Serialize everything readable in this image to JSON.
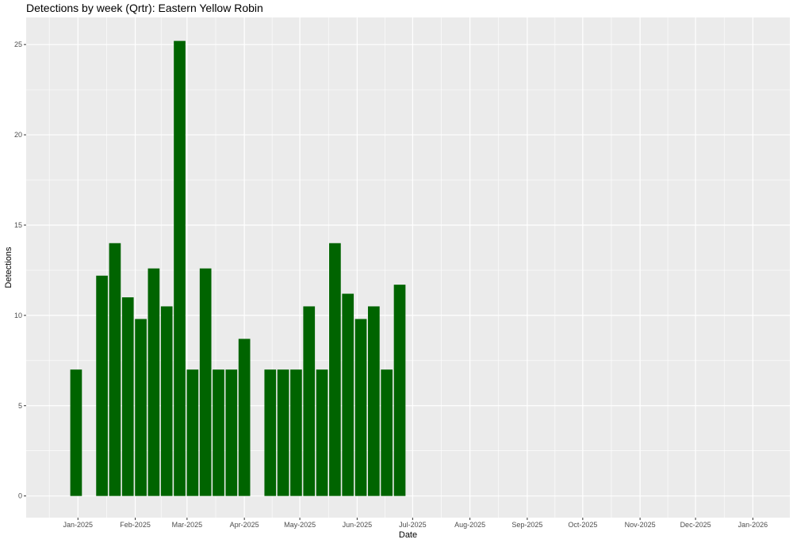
{
  "chart_data": {
    "type": "bar",
    "title": "Detections by week (Qrtr): Eastern Yellow Robin",
    "xlabel": "Date",
    "ylabel": "Detections",
    "x_type": "date",
    "xlim": [
      "2024-12-04",
      "2026-01-21"
    ],
    "ylim": [
      -1.2,
      26.5
    ],
    "y_ticks": [
      0,
      5,
      10,
      15,
      20,
      25
    ],
    "x_ticks": [
      {
        "date": "2025-01-01",
        "label": "Jan-2025"
      },
      {
        "date": "2025-02-01",
        "label": "Feb-2025"
      },
      {
        "date": "2025-03-01",
        "label": "Mar-2025"
      },
      {
        "date": "2025-04-01",
        "label": "Apr-2025"
      },
      {
        "date": "2025-05-01",
        "label": "May-2025"
      },
      {
        "date": "2025-06-01",
        "label": "Jun-2025"
      },
      {
        "date": "2025-07-01",
        "label": "Jul-2025"
      },
      {
        "date": "2025-08-01",
        "label": "Aug-2025"
      },
      {
        "date": "2025-09-01",
        "label": "Sep-2025"
      },
      {
        "date": "2025-10-01",
        "label": "Oct-2025"
      },
      {
        "date": "2025-11-01",
        "label": "Nov-2025"
      },
      {
        "date": "2025-12-01",
        "label": "Dec-2025"
      },
      {
        "date": "2026-01-01",
        "label": "Jan-2026"
      }
    ],
    "grid": true,
    "bar_color": "#006400",
    "panel_color": "#ebebeb",
    "x": [
      "2024-12-31",
      "2025-01-14",
      "2025-01-21",
      "2025-01-28",
      "2025-02-04",
      "2025-02-11",
      "2025-02-18",
      "2025-02-25",
      "2025-03-04",
      "2025-03-11",
      "2025-03-18",
      "2025-03-25",
      "2025-04-01",
      "2025-04-15",
      "2025-04-22",
      "2025-04-29",
      "2025-05-06",
      "2025-05-13",
      "2025-05-20",
      "2025-05-27",
      "2025-06-03",
      "2025-06-10",
      "2025-06-17",
      "2025-06-24"
    ],
    "values": [
      7,
      12.2,
      14,
      11,
      9.8,
      12.6,
      10.5,
      25.2,
      7,
      12.6,
      7,
      7,
      8.7,
      7,
      7,
      7,
      10.5,
      7,
      14,
      11.2,
      9.8,
      10.5,
      7,
      11.7
    ]
  }
}
